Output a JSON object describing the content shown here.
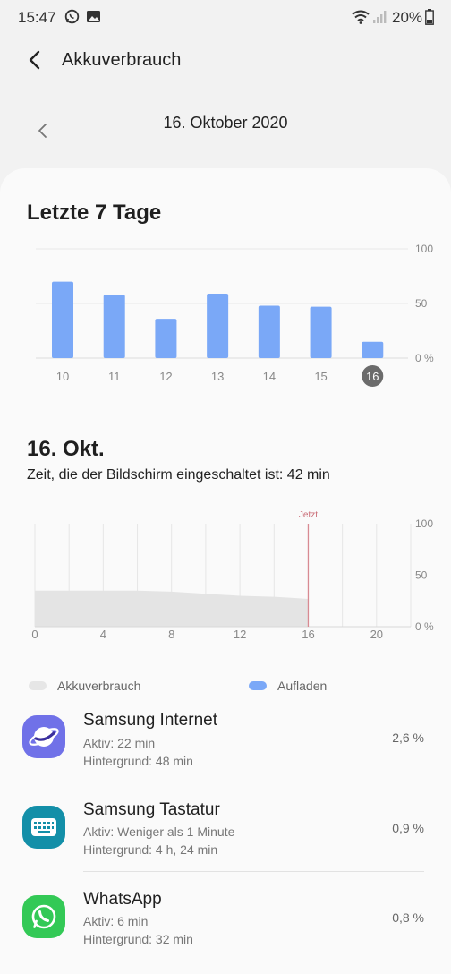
{
  "status_bar": {
    "time": "15:47",
    "battery_percent": "20%",
    "notification_icons": [
      "whatsapp-icon",
      "image-icon"
    ],
    "system_icons": [
      "wifi-icon",
      "signal-icon",
      "battery-icon"
    ]
  },
  "header": {
    "title": "Akkuverbrauch",
    "back_icon": "back-arrow-icon"
  },
  "date_nav": {
    "date": "16. Oktober 2020",
    "prev_icon": "chevron-left-icon"
  },
  "week": {
    "title": "Letzte 7 Tage"
  },
  "day": {
    "title": "16. Okt.",
    "screen_time": "Zeit, die der Bildschirm eingeschaltet ist: 42 min"
  },
  "chart_data": [
    {
      "type": "bar",
      "title": "Letzte 7 Tage",
      "categories": [
        "10",
        "11",
        "12",
        "13",
        "14",
        "15",
        "16"
      ],
      "values": [
        70,
        58,
        36,
        59,
        48,
        47,
        15
      ],
      "selected_category": "16",
      "y_ticks": [
        "100",
        "50",
        "0 %"
      ],
      "ylim": [
        0,
        100
      ],
      "bar_color": "#7aa8f7",
      "grid": true
    },
    {
      "type": "area",
      "x": [
        0,
        4,
        6,
        8,
        10,
        12,
        14,
        15,
        16
      ],
      "values": [
        35,
        35,
        35,
        34,
        32,
        30,
        29,
        28,
        27
      ],
      "x_ticks": [
        "0",
        "4",
        "8",
        "12",
        "16",
        "20"
      ],
      "y_ticks": [
        "100",
        "50",
        "0 %"
      ],
      "xlim": [
        0,
        22
      ],
      "ylim": [
        0,
        100
      ],
      "now_marker": {
        "x": 16,
        "label": "Jetzt"
      },
      "area_color": "#e4e4e4",
      "marker_color": "#d88a92",
      "grid": true
    }
  ],
  "legend": [
    {
      "label": "Akkuverbrauch",
      "color": "#e6e6e6"
    },
    {
      "label": "Aufladen",
      "color": "#7aa8f7"
    }
  ],
  "apps": [
    {
      "name": "Samsung Internet",
      "active": "Aktiv: 22 min",
      "background": "Hintergrund: 48 min",
      "percent": "2,6 %",
      "icon": "samsung-internet-icon",
      "icon_color": "#7071e8"
    },
    {
      "name": "Samsung Tastatur",
      "active": "Aktiv: Weniger als 1 Minute",
      "background": "Hintergrund: 4 h, 24 min",
      "percent": "0,9 %",
      "icon": "keyboard-icon",
      "icon_color": "#138fa8"
    },
    {
      "name": "WhatsApp",
      "active": "Aktiv: 6 min",
      "background": "Hintergrund: 32 min",
      "percent": "0,8 %",
      "icon": "whatsapp-icon",
      "icon_color": "#33c956"
    }
  ]
}
